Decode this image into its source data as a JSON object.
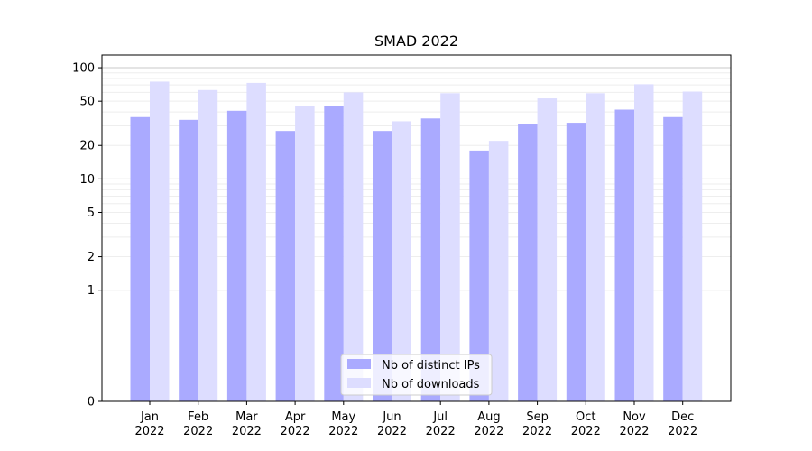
{
  "chart_data": {
    "type": "bar",
    "title": "SMAD 2022",
    "xlabel": "",
    "ylabel": "",
    "yscale": "symlog",
    "ylim": [
      0,
      130
    ],
    "yticks": [
      {
        "value": 0,
        "label": "0"
      },
      {
        "value": 1,
        "label": "1"
      },
      {
        "value": 2,
        "label": "2"
      },
      {
        "value": 5,
        "label": "5"
      },
      {
        "value": 10,
        "label": "10"
      },
      {
        "value": 20,
        "label": "20"
      },
      {
        "value": 50,
        "label": "50"
      },
      {
        "value": 100,
        "label": "100"
      }
    ],
    "categories": [
      {
        "month": "Jan",
        "year": "2022"
      },
      {
        "month": "Feb",
        "year": "2022"
      },
      {
        "month": "Mar",
        "year": "2022"
      },
      {
        "month": "Apr",
        "year": "2022"
      },
      {
        "month": "May",
        "year": "2022"
      },
      {
        "month": "Jun",
        "year": "2022"
      },
      {
        "month": "Jul",
        "year": "2022"
      },
      {
        "month": "Aug",
        "year": "2022"
      },
      {
        "month": "Sep",
        "year": "2022"
      },
      {
        "month": "Oct",
        "year": "2022"
      },
      {
        "month": "Nov",
        "year": "2022"
      },
      {
        "month": "Dec",
        "year": "2022"
      }
    ],
    "series": [
      {
        "name": "Nb of distinct IPs",
        "color": "#aaaaff",
        "values": [
          36,
          34,
          41,
          27,
          45,
          27,
          35,
          18,
          31,
          32,
          42,
          36
        ]
      },
      {
        "name": "Nb of downloads",
        "color": "#ddddff",
        "values": [
          75,
          63,
          73,
          45,
          60,
          33,
          59,
          22,
          53,
          59,
          71,
          61
        ]
      }
    ],
    "grid": true,
    "legend_position": "bottom-center"
  }
}
